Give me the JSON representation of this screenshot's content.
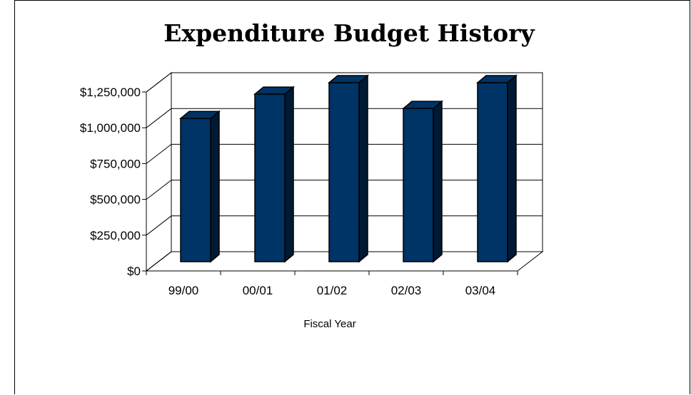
{
  "chart_data": {
    "type": "bar",
    "title": "Expenditure Budget History",
    "xlabel": "Fiscal Year",
    "ylabel": "",
    "categories": [
      "99/00",
      "00/01",
      "01/02",
      "02/03",
      "03/04"
    ],
    "values": [
      1000000,
      1170000,
      1250000,
      1070000,
      1250000
    ],
    "ylim": [
      0,
      1250000
    ],
    "yticks": [
      0,
      250000,
      500000,
      750000,
      1000000,
      1250000
    ],
    "ytick_labels": [
      "$0",
      "$250,000",
      "$500,000",
      "$750,000",
      "$1,000,000",
      "$1,250,000"
    ],
    "grid": true,
    "legend": "none",
    "bar_color": "#003366",
    "three_d": true
  }
}
